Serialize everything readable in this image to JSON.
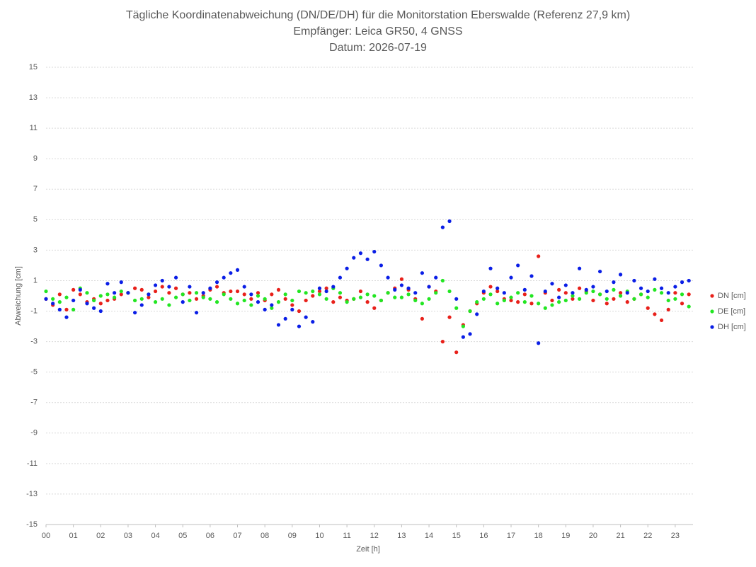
{
  "chart_data": {
    "type": "scatter",
    "title": "Tägliche Koordinatenabweichung (DN/DE/DH) für die Monitorstation Eberswalde (Referenz 27,9 km)",
    "subtitle": [
      "Empfänger: Leica GR50, 4 GNSS",
      "Datum: 2026-07-19"
    ],
    "x_label": "Zeit [h]",
    "y_label": "Abweichung [cm]",
    "xlim": [
      0,
      23.65
    ],
    "ylim": [
      -15,
      15
    ],
    "xticks": [
      {
        "value": 0,
        "label": "00"
      },
      {
        "value": 1,
        "label": "01"
      },
      {
        "value": 2,
        "label": "02"
      },
      {
        "value": 3,
        "label": "03"
      },
      {
        "value": 4,
        "label": "04"
      },
      {
        "value": 5,
        "label": "05"
      },
      {
        "value": 6,
        "label": "06"
      },
      {
        "value": 7,
        "label": "07"
      },
      {
        "value": 8,
        "label": "08"
      },
      {
        "value": 9,
        "label": "09"
      },
      10,
      11,
      12,
      13,
      14,
      15,
      16,
      17,
      18,
      19,
      20,
      21,
      22,
      23
    ],
    "yticks": [
      -15,
      -13,
      -11,
      -9,
      -7,
      -5,
      -3,
      -1,
      1,
      3,
      5,
      7,
      9,
      11,
      13,
      15
    ],
    "grid": true,
    "legend": "right",
    "x": [
      0,
      0.25,
      0.5,
      0.75,
      1,
      1.25,
      1.5,
      1.75,
      2,
      2.25,
      2.5,
      2.75,
      3,
      3.25,
      3.5,
      3.75,
      4,
      4.25,
      4.5,
      4.75,
      5,
      5.25,
      5.5,
      5.75,
      6,
      6.25,
      6.5,
      6.75,
      7,
      7.25,
      7.5,
      7.75,
      8,
      8.25,
      8.5,
      8.75,
      9,
      9.25,
      9.5,
      9.75,
      10,
      10.25,
      10.5,
      10.75,
      11,
      11.25,
      11.5,
      11.75,
      12,
      12.25,
      12.5,
      12.75,
      13,
      13.25,
      13.5,
      13.75,
      14,
      14.25,
      14.5,
      14.75,
      15,
      15.25,
      15.5,
      15.75,
      16,
      16.25,
      16.5,
      16.75,
      17,
      17.25,
      17.5,
      17.75,
      18,
      18.25,
      18.5,
      18.75,
      19,
      19.25,
      19.5,
      19.75,
      20,
      20.25,
      20.5,
      20.75,
      21,
      21.25,
      21.5,
      21.75,
      22,
      22.25,
      22.5,
      22.75,
      23,
      23.25,
      23.5
    ],
    "series": [
      {
        "name": "DN [cm]",
        "color": "#e8201a",
        "values": [
          -0.2,
          -0.6,
          0.1,
          -0.9,
          0.4,
          0.1,
          -0.4,
          -0.2,
          -0.5,
          -0.3,
          -0.2,
          0.1,
          0.2,
          0.5,
          0.4,
          -0.1,
          0.3,
          0.6,
          0.2,
          0.5,
          0.1,
          0.2,
          -0.2,
          0.0,
          0.4,
          0.6,
          0.2,
          0.3,
          0.3,
          0.1,
          -0.2,
          0.2,
          -0.3,
          0.1,
          0.4,
          -0.2,
          -0.6,
          -1.0,
          -0.3,
          0.0,
          0.3,
          0.5,
          -0.4,
          -0.1,
          -0.3,
          -0.2,
          0.3,
          -0.4,
          -0.8,
          -0.3,
          0.2,
          0.5,
          1.1,
          0.4,
          -0.2,
          -1.5,
          0.6,
          0.3,
          -3.0,
          -1.4,
          -3.7,
          -1.9,
          -1.0,
          -0.5,
          0.2,
          0.6,
          0.3,
          -0.2,
          -0.3,
          -0.4,
          0.1,
          -0.5,
          2.6,
          0.2,
          -0.3,
          0.4,
          0.2,
          -0.2,
          0.5,
          0.3,
          -0.3,
          0.1,
          -0.5,
          -0.2,
          0.2,
          -0.4,
          -0.2,
          0.1,
          -0.8,
          -1.2,
          -1.6,
          -0.9,
          0.2,
          -0.5,
          0.1
        ]
      },
      {
        "name": "DE [cm]",
        "color": "#22e622",
        "values": [
          0.3,
          -0.2,
          -0.4,
          -0.1,
          -0.9,
          0.5,
          0.2,
          -0.3,
          0.0,
          0.1,
          -0.1,
          0.3,
          0.2,
          -0.3,
          -0.2,
          0.1,
          -0.4,
          -0.2,
          -0.6,
          -0.1,
          0.1,
          -0.3,
          0.2,
          -0.1,
          -0.2,
          -0.4,
          0.1,
          -0.2,
          -0.5,
          -0.3,
          -0.6,
          0.0,
          -0.2,
          -0.8,
          -0.4,
          0.1,
          -0.3,
          0.3,
          0.2,
          0.3,
          0.1,
          -0.2,
          0.5,
          0.2,
          -0.4,
          -0.2,
          -0.1,
          0.1,
          0.0,
          -0.3,
          0.2,
          -0.1,
          -0.1,
          0.1,
          -0.3,
          -0.5,
          -0.2,
          0.2,
          1.0,
          0.3,
          -0.8,
          -2.0,
          -1.0,
          -0.4,
          -0.2,
          0.1,
          -0.5,
          -0.3,
          -0.1,
          0.2,
          -0.4,
          0.0,
          -0.5,
          -0.8,
          -0.6,
          -0.4,
          -0.3,
          0.0,
          -0.2,
          0.2,
          0.3,
          0.1,
          -0.2,
          0.4,
          0.0,
          0.3,
          -0.2,
          0.1,
          -0.1,
          0.4,
          0.2,
          -0.3,
          -0.2,
          0.1,
          -0.7
        ]
      },
      {
        "name": "DH [cm]",
        "color": "#0a1ee6",
        "values": [
          -0.2,
          -0.5,
          -0.9,
          -1.4,
          -0.3,
          0.4,
          -0.5,
          -0.8,
          -1.0,
          0.8,
          0.2,
          0.9,
          0.2,
          -1.1,
          -0.6,
          0.1,
          0.7,
          1.0,
          0.6,
          1.2,
          -0.4,
          0.6,
          -1.1,
          0.2,
          0.5,
          0.9,
          1.2,
          1.5,
          1.7,
          0.6,
          0.1,
          -0.4,
          -0.9,
          -0.6,
          -1.9,
          -1.5,
          -0.9,
          -2.0,
          -1.4,
          -1.7,
          0.5,
          0.3,
          0.6,
          1.2,
          1.8,
          2.5,
          2.8,
          2.4,
          2.9,
          2.0,
          1.2,
          0.4,
          0.7,
          0.5,
          0.2,
          1.5,
          0.6,
          1.2,
          4.5,
          4.9,
          -0.2,
          -2.7,
          -2.5,
          -1.2,
          0.3,
          1.8,
          0.5,
          0.2,
          1.2,
          2.0,
          0.4,
          1.3,
          -3.1,
          0.3,
          0.8,
          -0.1,
          0.7,
          0.2,
          1.8,
          0.4,
          0.6,
          1.6,
          0.3,
          0.9,
          1.4,
          0.2,
          1.0,
          0.5,
          0.3,
          1.1,
          0.5,
          0.2,
          0.6,
          0.9,
          1.0
        ]
      }
    ]
  }
}
